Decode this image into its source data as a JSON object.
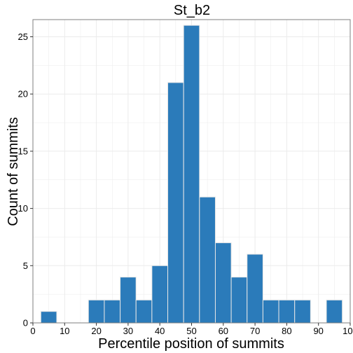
{
  "chart_data": {
    "type": "bar",
    "title": "St_b2",
    "xlabel": "Percentile position of summits",
    "ylabel": "Count of summits",
    "xlim": [
      0,
      100
    ],
    "ylim": [
      0,
      26.5
    ],
    "x_ticks": [
      "0",
      "10",
      "20",
      "30",
      "40",
      "50",
      "60",
      "70",
      "80",
      "90",
      "100"
    ],
    "y_ticks": [
      "0",
      "5",
      "10",
      "15",
      "20",
      "25"
    ],
    "bin_width": 5,
    "bin_starts": [
      2.5,
      7.5,
      12.5,
      17.5,
      22.5,
      27.5,
      32.5,
      37.5,
      42.5,
      47.5,
      52.5,
      57.5,
      62.5,
      67.5,
      72.5,
      77.5,
      82.5,
      87.5,
      92.5
    ],
    "values": [
      1,
      0,
      0,
      2,
      2,
      4,
      2,
      5,
      21,
      26,
      11,
      7,
      4,
      6,
      2,
      2,
      2,
      0,
      2
    ],
    "grid": true,
    "bar_color": "#2b7bba",
    "bar_edge_color": "#e6e6e6",
    "grid_color": "#ebebeb",
    "frame_color": "#7f7f7f"
  }
}
